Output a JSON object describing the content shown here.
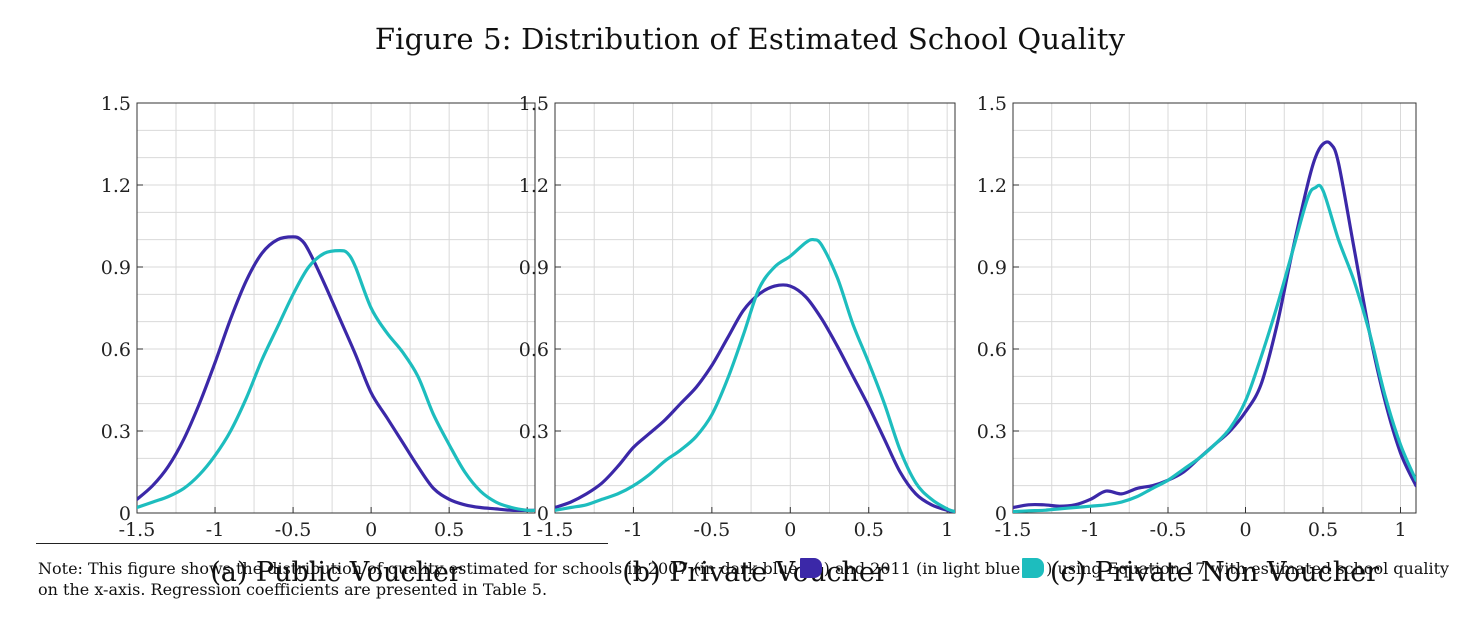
{
  "figure_title": "Figure 5: Distribution of Estimated School Quality",
  "colors": {
    "series_2007": "#3b28a8",
    "series_2011": "#1dbdbe",
    "grid": "#d9d9d9"
  },
  "note": {
    "part1": "Note: This figure shows the distribution of quality estimated for schools in 2007 (in dark blue",
    "part2": ") and 2011 (in light blue",
    "part3": ") using Equation 17 with estimated school quality on the x-axis. Regression coefficients are presented in Table 5."
  },
  "chart_data": [
    {
      "type": "line",
      "caption": "(a) Public Voucher",
      "xlim": [
        -1.5,
        1.05
      ],
      "ylim": [
        0,
        1.5
      ],
      "xticks": [
        -1.5,
        -1,
        -0.5,
        0,
        0.5,
        1
      ],
      "xtick_labels": [
        "-1.5",
        "-1",
        "-0.5",
        "0",
        "0.5",
        "1"
      ],
      "yticks": [
        0,
        0.3,
        0.6,
        0.9,
        1.2,
        1.5
      ],
      "ytick_labels": [
        "0",
        "0.3",
        "0.6",
        "0.9",
        "1.2",
        "1.5"
      ],
      "grid": true,
      "series": [
        {
          "color_key": "series_2007",
          "x": [
            -1.5,
            -1.4,
            -1.3,
            -1.2,
            -1.1,
            -1.0,
            -0.9,
            -0.8,
            -0.7,
            -0.6,
            -0.5,
            -0.45,
            -0.4,
            -0.3,
            -0.2,
            -0.1,
            0.0,
            0.1,
            0.2,
            0.3,
            0.4,
            0.5,
            0.6,
            0.7,
            0.8,
            0.9,
            1.0,
            1.05
          ],
          "y": [
            0.05,
            0.1,
            0.17,
            0.27,
            0.4,
            0.55,
            0.71,
            0.85,
            0.95,
            1.0,
            1.01,
            1.0,
            0.96,
            0.84,
            0.71,
            0.58,
            0.44,
            0.35,
            0.26,
            0.17,
            0.09,
            0.05,
            0.03,
            0.02,
            0.015,
            0.01,
            0.01,
            0.01
          ]
        },
        {
          "color_key": "series_2011",
          "x": [
            -1.5,
            -1.4,
            -1.3,
            -1.2,
            -1.1,
            -1.0,
            -0.9,
            -0.8,
            -0.7,
            -0.6,
            -0.5,
            -0.4,
            -0.3,
            -0.2,
            -0.15,
            -0.1,
            0.0,
            0.1,
            0.2,
            0.3,
            0.4,
            0.5,
            0.6,
            0.7,
            0.8,
            0.9,
            1.0,
            1.05
          ],
          "y": [
            0.02,
            0.04,
            0.06,
            0.09,
            0.14,
            0.21,
            0.3,
            0.42,
            0.56,
            0.68,
            0.8,
            0.9,
            0.95,
            0.96,
            0.95,
            0.9,
            0.75,
            0.66,
            0.59,
            0.5,
            0.36,
            0.25,
            0.15,
            0.08,
            0.04,
            0.02,
            0.01,
            0.01
          ]
        }
      ]
    },
    {
      "type": "line",
      "caption": "(b) Private Voucher",
      "xlim": [
        -1.5,
        1.05
      ],
      "ylim": [
        0,
        1.5
      ],
      "xticks": [
        -1.5,
        -1,
        -0.5,
        0,
        0.5,
        1
      ],
      "xtick_labels": [
        "-1.5",
        "-1",
        "-0.5",
        "0",
        "0.5",
        "1"
      ],
      "yticks": [
        0,
        0.3,
        0.6,
        0.9,
        1.2,
        1.5
      ],
      "ytick_labels": [
        "0",
        "0.3",
        "0.6",
        "0.9",
        "1.2",
        "1.5"
      ],
      "grid": true,
      "series": [
        {
          "color_key": "series_2007",
          "x": [
            -1.5,
            -1.4,
            -1.3,
            -1.2,
            -1.1,
            -1.0,
            -0.9,
            -0.8,
            -0.7,
            -0.6,
            -0.5,
            -0.4,
            -0.3,
            -0.2,
            -0.1,
            0.0,
            0.1,
            0.2,
            0.3,
            0.4,
            0.5,
            0.6,
            0.7,
            0.8,
            0.9,
            1.0,
            1.05
          ],
          "y": [
            0.02,
            0.04,
            0.07,
            0.11,
            0.17,
            0.24,
            0.29,
            0.34,
            0.4,
            0.46,
            0.54,
            0.64,
            0.74,
            0.8,
            0.83,
            0.83,
            0.79,
            0.71,
            0.61,
            0.5,
            0.39,
            0.27,
            0.15,
            0.07,
            0.03,
            0.01,
            0.005
          ]
        },
        {
          "color_key": "series_2011",
          "x": [
            -1.5,
            -1.4,
            -1.3,
            -1.2,
            -1.1,
            -1.0,
            -0.9,
            -0.8,
            -0.7,
            -0.6,
            -0.5,
            -0.4,
            -0.3,
            -0.2,
            -0.1,
            0.0,
            0.1,
            0.15,
            0.2,
            0.3,
            0.4,
            0.5,
            0.6,
            0.7,
            0.8,
            0.9,
            1.0,
            1.05
          ],
          "y": [
            0.01,
            0.02,
            0.03,
            0.05,
            0.07,
            0.1,
            0.14,
            0.19,
            0.23,
            0.28,
            0.36,
            0.49,
            0.65,
            0.82,
            0.9,
            0.94,
            0.99,
            1.0,
            0.98,
            0.86,
            0.69,
            0.55,
            0.4,
            0.23,
            0.11,
            0.05,
            0.015,
            0.005
          ]
        }
      ]
    },
    {
      "type": "line",
      "caption": "(c) Private Non Voucher",
      "xlim": [
        -1.5,
        1.1
      ],
      "ylim": [
        0,
        1.5
      ],
      "xticks": [
        -1.5,
        -1,
        -0.5,
        0,
        0.5,
        1
      ],
      "xtick_labels": [
        "-1.5",
        "-1",
        "-0.5",
        "0",
        "0.5",
        "1"
      ],
      "yticks": [
        0,
        0.3,
        0.6,
        0.9,
        1.2,
        1.5
      ],
      "ytick_labels": [
        "0",
        "0.3",
        "0.6",
        "0.9",
        "1.2",
        "1.5"
      ],
      "grid": true,
      "series": [
        {
          "color_key": "series_2007",
          "x": [
            -1.5,
            -1.4,
            -1.3,
            -1.2,
            -1.1,
            -1.0,
            -0.9,
            -0.8,
            -0.7,
            -0.6,
            -0.5,
            -0.4,
            -0.3,
            -0.2,
            -0.1,
            0.0,
            0.1,
            0.2,
            0.3,
            0.4,
            0.45,
            0.5,
            0.55,
            0.6,
            0.7,
            0.8,
            0.9,
            1.0,
            1.1
          ],
          "y": [
            0.02,
            0.03,
            0.03,
            0.025,
            0.03,
            0.05,
            0.08,
            0.07,
            0.09,
            0.1,
            0.12,
            0.15,
            0.2,
            0.25,
            0.3,
            0.37,
            0.47,
            0.68,
            0.95,
            1.2,
            1.3,
            1.35,
            1.35,
            1.28,
            0.97,
            0.66,
            0.41,
            0.22,
            0.1
          ]
        },
        {
          "color_key": "series_2011",
          "x": [
            -1.5,
            -1.4,
            -1.3,
            -1.2,
            -1.1,
            -1.0,
            -0.9,
            -0.8,
            -0.7,
            -0.6,
            -0.5,
            -0.4,
            -0.3,
            -0.2,
            -0.1,
            0.0,
            0.1,
            0.2,
            0.3,
            0.4,
            0.45,
            0.5,
            0.6,
            0.7,
            0.8,
            0.9,
            1.0,
            1.1
          ],
          "y": [
            0.005,
            0.008,
            0.01,
            0.015,
            0.02,
            0.025,
            0.03,
            0.04,
            0.06,
            0.09,
            0.12,
            0.16,
            0.2,
            0.25,
            0.31,
            0.41,
            0.57,
            0.75,
            0.95,
            1.15,
            1.19,
            1.18,
            1.0,
            0.85,
            0.66,
            0.43,
            0.25,
            0.12
          ]
        }
      ]
    }
  ]
}
